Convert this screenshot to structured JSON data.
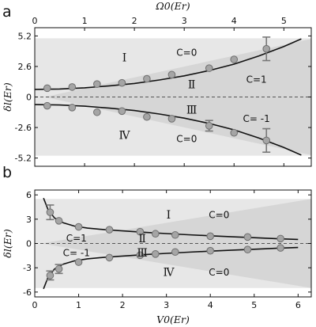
{
  "chart_data": [
    {
      "panel": "a",
      "type": "scatter",
      "ylabel": "δl(Er)",
      "top_xlabel": "Ω0(Er)",
      "xlim": [
        0,
        5.55
      ],
      "ylim": [
        -5.9,
        5.9
      ],
      "xticks": [
        0,
        1,
        2,
        3,
        4,
        5
      ],
      "yticks": [
        5.2,
        2.6,
        0,
        -2.6,
        -5.2
      ],
      "ytick_labels": [
        "5.2",
        "2.6",
        "0",
        "-2.6",
        "-5.2"
      ],
      "band": {
        "x": [
          0,
          5.55
        ],
        "lower": [
          -5.0,
          -5.0
        ],
        "upper": [
          5.0,
          5.0
        ],
        "color": "#e7e7e7"
      },
      "gap_region": {
        "x0": 0,
        "xtip": 5.55,
        "half_width": 4.7,
        "color": "#d6d6d6"
      },
      "series": [
        {
          "x": [
            0.25,
            0.75,
            1.25,
            1.75,
            2.25,
            2.75,
            3.5,
            4.0,
            4.65
          ],
          "y": [
            0.75,
            0.85,
            1.1,
            1.2,
            1.55,
            1.9,
            2.45,
            3.2,
            4.1
          ],
          "err": [
            0.15,
            0.15,
            0.15,
            0.15,
            0.2,
            0.2,
            0.2,
            0.25,
            1.0
          ]
        },
        {
          "x": [
            0.25,
            0.75,
            1.25,
            1.75,
            2.25,
            2.75,
            3.5,
            4.0,
            4.65
          ],
          "y": [
            -0.75,
            -0.9,
            -1.3,
            -1.2,
            -1.7,
            -1.85,
            -2.45,
            -3.05,
            -3.7
          ],
          "err": [
            0.15,
            0.15,
            0.2,
            0.2,
            0.3,
            0.2,
            0.45,
            0.25,
            1.0
          ]
        }
      ],
      "curves": [
        {
          "x": [
            0,
            0.5,
            1,
            1.5,
            2,
            2.5,
            3,
            3.5,
            4,
            4.5,
            5,
            5.35
          ],
          "y": [
            0.65,
            0.68,
            0.78,
            0.95,
            1.15,
            1.45,
            1.8,
            2.25,
            2.8,
            3.5,
            4.3,
            4.95
          ]
        },
        {
          "x": [
            0,
            0.5,
            1,
            1.5,
            2,
            2.5,
            3,
            3.5,
            4,
            4.5,
            5,
            5.35
          ],
          "y": [
            -0.65,
            -0.68,
            -0.78,
            -0.95,
            -1.15,
            -1.45,
            -1.8,
            -2.25,
            -2.8,
            -3.5,
            -4.3,
            -4.95
          ]
        }
      ],
      "labels": [
        {
          "text": "Ⅰ",
          "x": 1.8,
          "y": 3.3,
          "kind": "region"
        },
        {
          "text": "C=0",
          "x": 3.05,
          "y": 3.75,
          "kind": "c"
        },
        {
          "text": "Ⅱ",
          "x": 3.15,
          "y": 1.0,
          "kind": "region"
        },
        {
          "text": "C=1",
          "x": 4.45,
          "y": 1.45,
          "kind": "c"
        },
        {
          "text": "Ⅲ",
          "x": 3.15,
          "y": -1.15,
          "kind": "region"
        },
        {
          "text": "C= -1",
          "x": 4.45,
          "y": -1.9,
          "kind": "c"
        },
        {
          "text": "Ⅳ",
          "x": 1.8,
          "y": -3.3,
          "kind": "region"
        },
        {
          "text": "C=0",
          "x": 3.05,
          "y": -3.6,
          "kind": "c"
        }
      ]
    },
    {
      "panel": "b",
      "type": "scatter",
      "ylabel": "δl(Er)",
      "xlabel": "V0(Er)",
      "xlim": [
        0,
        6.3
      ],
      "ylim": [
        -6.6,
        6.6
      ],
      "xticks": [
        0,
        1,
        2,
        3,
        4,
        5,
        6
      ],
      "yticks": [
        6,
        3,
        0,
        -3,
        -6
      ],
      "ytick_labels": [
        "6",
        "3",
        "0",
        "-3",
        "-6"
      ],
      "band": {
        "x": [
          0,
          6.3
        ],
        "lower": [
          -5.5,
          -5.5
        ],
        "upper": [
          5.5,
          5.5
        ],
        "color": "#e7e7e7"
      },
      "gap_region": {
        "x0": 6.3,
        "xtip": 0.15,
        "half_width": 5.5,
        "color": "#d6d6d6"
      },
      "series": [
        {
          "x": [
            0.35,
            0.55,
            1.0,
            1.7,
            2.4,
            2.75,
            3.2,
            4.0,
            4.85,
            5.6
          ],
          "y": [
            3.85,
            2.8,
            2.05,
            1.7,
            1.45,
            1.2,
            1.05,
            0.9,
            0.8,
            0.6
          ],
          "err": [
            0.9,
            0.2,
            0.2,
            0.2,
            0.2,
            0.2,
            0.2,
            0.15,
            0.15,
            0.15
          ]
        },
        {
          "x": [
            0.35,
            0.55,
            1.0,
            1.7,
            2.4,
            2.75,
            3.2,
            4.0,
            4.85,
            5.6
          ],
          "y": [
            -3.95,
            -3.15,
            -2.3,
            -1.75,
            -1.45,
            -1.3,
            -1.05,
            -0.9,
            -0.75,
            -0.55
          ],
          "err": [
            0.55,
            0.55,
            0.25,
            0.2,
            0.2,
            0.2,
            0.2,
            0.15,
            0.15,
            0.15
          ]
        }
      ],
      "curves": [
        {
          "x": [
            0.2,
            0.3,
            0.45,
            0.65,
            0.9,
            1.2,
            1.6,
            2.0,
            2.5,
            3.0,
            3.5,
            4.0,
            4.5,
            5.0,
            5.5,
            6.0
          ],
          "y": [
            5.6,
            4.2,
            3.15,
            2.55,
            2.15,
            1.9,
            1.7,
            1.55,
            1.38,
            1.22,
            1.08,
            0.95,
            0.82,
            0.71,
            0.6,
            0.5
          ]
        },
        {
          "x": [
            0.2,
            0.3,
            0.45,
            0.65,
            0.9,
            1.2,
            1.6,
            2.0,
            2.5,
            3.0,
            3.5,
            4.0,
            4.5,
            5.0,
            5.5,
            6.0
          ],
          "y": [
            -5.6,
            -4.2,
            -3.15,
            -2.55,
            -2.15,
            -1.9,
            -1.7,
            -1.55,
            -1.38,
            -1.22,
            -1.08,
            -0.95,
            -0.82,
            -0.71,
            -0.6,
            -0.5
          ]
        }
      ],
      "labels": [
        {
          "text": "Ⅰ",
          "x": 3.05,
          "y": 3.45,
          "kind": "region"
        },
        {
          "text": "C=0",
          "x": 4.2,
          "y": 3.45,
          "kind": "c"
        },
        {
          "text": "C=1",
          "x": 0.95,
          "y": 0.6,
          "kind": "c"
        },
        {
          "text": "Ⅱ",
          "x": 2.45,
          "y": 0.55,
          "kind": "region"
        },
        {
          "text": "C= -1",
          "x": 0.95,
          "y": -1.2,
          "kind": "c"
        },
        {
          "text": "Ⅲ",
          "x": 2.45,
          "y": -1.2,
          "kind": "region"
        },
        {
          "text": "Ⅳ",
          "x": 3.05,
          "y": -3.6,
          "kind": "region"
        },
        {
          "text": "C=0",
          "x": 4.2,
          "y": -3.6,
          "kind": "c"
        }
      ]
    }
  ],
  "panel_letters": [
    "a",
    "b"
  ]
}
